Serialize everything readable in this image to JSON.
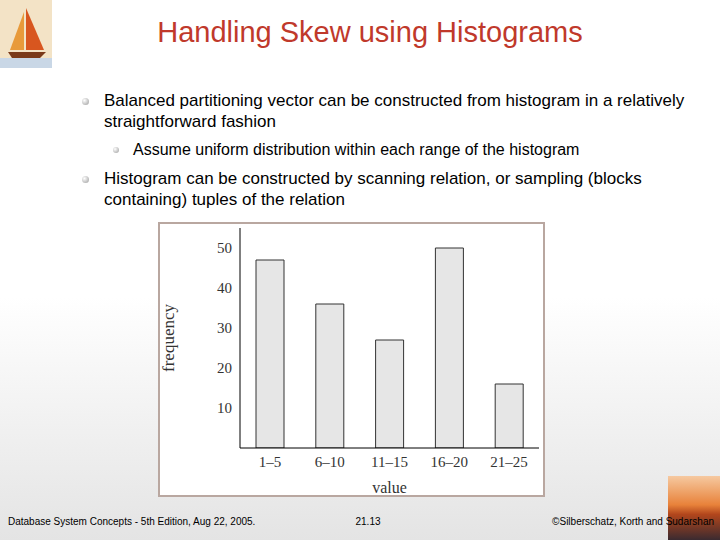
{
  "slide": {
    "title": "Handling Skew using Histograms",
    "bullets": [
      {
        "text": "Balanced partitioning vector can be constructed from histogram in a relatively straightforward fashion",
        "sub": [
          "Assume uniform distribution within each range of the histogram"
        ]
      },
      {
        "text": "Histogram can be constructed by scanning relation, or sampling (blocks containing) tuples of the relation",
        "sub": []
      }
    ],
    "footer": {
      "left": "Database System Concepts - 5th Edition, Aug 22, 2005.",
      "center": "21.13",
      "right": "©Silberschatz, Korth and Sudarshan"
    }
  },
  "chart_data": {
    "type": "bar",
    "categories": [
      "1–5",
      "6–10",
      "11–15",
      "16–20",
      "21–25"
    ],
    "values": [
      47,
      36,
      27,
      50,
      16
    ],
    "color": "#e6e6e6",
    "x_label": "value",
    "y_label": "frequency",
    "ylim": [
      0,
      55
    ],
    "yticks": [
      10,
      20,
      30,
      40,
      50
    ],
    "grid": false
  }
}
